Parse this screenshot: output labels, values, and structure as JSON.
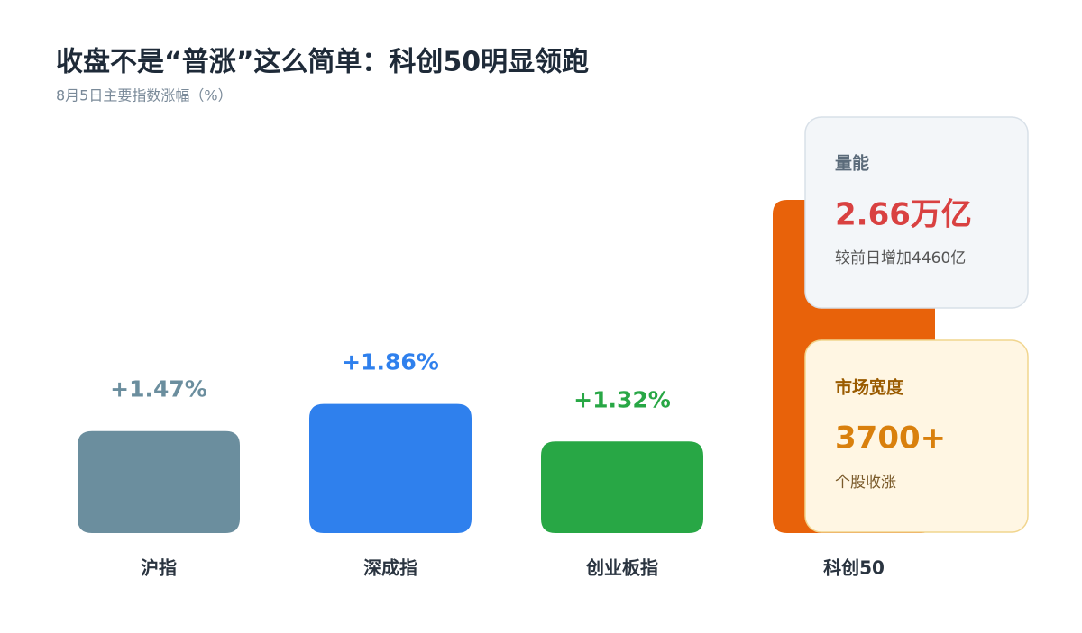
{
  "chart_data": {
    "type": "bar",
    "title": "收盘不是“普涨”这么简单：科创50明显领跑",
    "subtitle": "8月5日主要指数涨幅（%）",
    "categories": [
      "沪指",
      "深成指",
      "创业板指",
      "科创50"
    ],
    "values": [
      1.47,
      1.86,
      1.32,
      4.8
    ],
    "value_labels": [
      "+1.47%",
      "+1.86%",
      "+1.32%",
      null
    ],
    "colors": [
      "#6b8e9e",
      "#2f80ed",
      "#28a745",
      "#e8620a"
    ]
  },
  "cards": [
    {
      "title": "量能",
      "value": "2.66万亿",
      "note": "较前日增加4460亿"
    },
    {
      "title": "市场宽度",
      "value": "3700+",
      "note": "个股收涨"
    }
  ]
}
